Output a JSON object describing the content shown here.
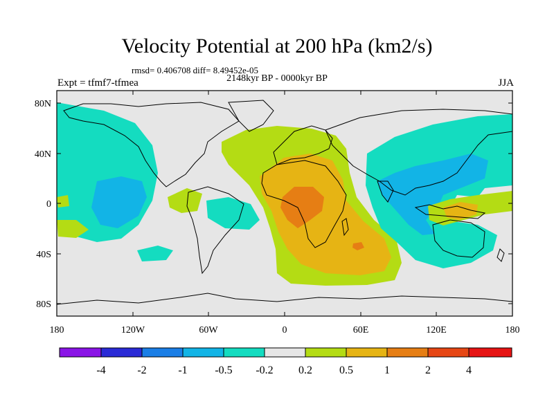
{
  "figure": {
    "title": "Velocity Potential at 200 hPa (km2/s)",
    "stats": "rmsd= 0.406708 diff= 8.49452e-05",
    "experiment": "Expt = tfmf7-tfmea",
    "period": "2148kyr BP - 0000kyr BP",
    "season": "JJA"
  },
  "axes": {
    "lat_labels": [
      "80N",
      "40N",
      "0",
      "40S",
      "80S"
    ],
    "lon_labels": [
      "180",
      "120W",
      "60W",
      "0",
      "60E",
      "120E",
      "180"
    ]
  },
  "colorbar": {
    "labels": [
      "-4",
      "-2",
      "-1",
      "-0.5",
      "-0.2",
      "0.2",
      "0.5",
      "1",
      "2",
      "4"
    ],
    "colors": [
      "#8a14e6",
      "#2a2ad6",
      "#1a7ee6",
      "#12b4e6",
      "#14dcc0",
      "#e6e6e6",
      "#b4dc14",
      "#e6b414",
      "#e67e14",
      "#e64614",
      "#e61414"
    ]
  },
  "map": {
    "background_color": "#e6e6e6",
    "level_colors": {
      "neg_0_5": "#14dcc0",
      "neg_1": "#12b4e6",
      "pos_0_2": "#b4dc14",
      "pos_0_5": "#e6b414",
      "pos_1": "#e67e14"
    }
  }
}
